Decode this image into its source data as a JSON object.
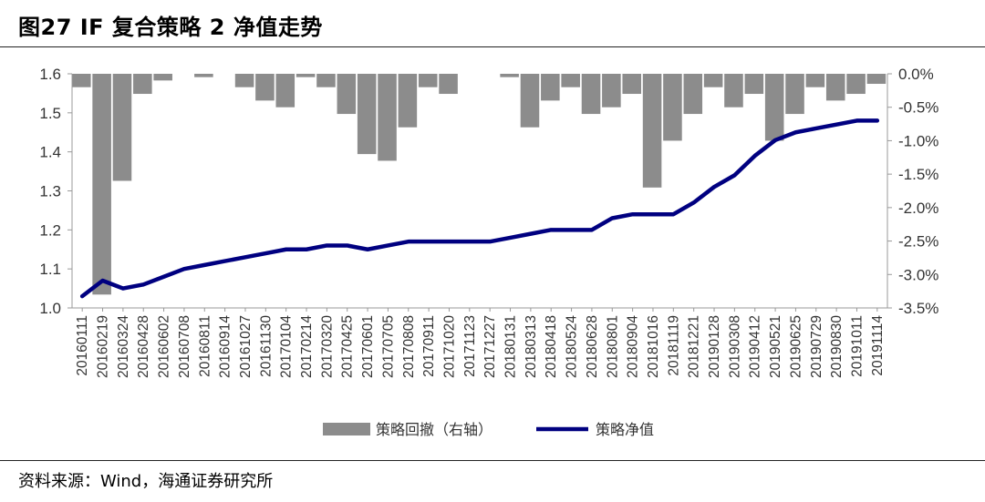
{
  "title": "图27 IF 复合策略 2 净值走势",
  "source": "资料来源：Wind，海通证券研究所",
  "colors": {
    "drawdown": "#8c8c8c",
    "nav": "#000080",
    "axis": "#999999"
  },
  "chart_data": {
    "type": "line",
    "title": "图27 IF 复合策略 2 净值走势",
    "categories": [
      "20160111",
      "20160219",
      "20160324",
      "20160428",
      "20160602",
      "20160708",
      "20160811",
      "20160914",
      "20161027",
      "20161130",
      "20170104",
      "20170214",
      "20170320",
      "20170425",
      "20170601",
      "20170705",
      "20170808",
      "20170911",
      "20171020",
      "20171123",
      "20171227",
      "20180131",
      "20180313",
      "20180418",
      "20180524",
      "20180628",
      "20180801",
      "20180904",
      "20181016",
      "20181119",
      "20181221",
      "20190128",
      "20190308",
      "20190412",
      "20190521",
      "20190625",
      "20190729",
      "20190830",
      "20191011",
      "20191114"
    ],
    "y_left": {
      "ylim": [
        1.0,
        1.6
      ],
      "ticks": [
        "1.0",
        "1.1",
        "1.2",
        "1.3",
        "1.4",
        "1.5",
        "1.6"
      ]
    },
    "y_right": {
      "ylim": [
        -3.5,
        0.0
      ],
      "ticks": [
        "0.0%",
        "-0.5%",
        "-1.0%",
        "-1.5%",
        "-2.0%",
        "-2.5%",
        "-3.0%",
        "-3.5%"
      ]
    },
    "legend_position": "bottom-center",
    "series": [
      {
        "name": "策略回撤（右轴）",
        "type": "area",
        "axis": "right",
        "values": [
          -0.2,
          -3.3,
          -1.6,
          -0.3,
          -0.1,
          0.0,
          -0.05,
          0.0,
          -0.2,
          -0.4,
          -0.5,
          -0.05,
          -0.2,
          -0.6,
          -1.2,
          -1.3,
          -0.8,
          -0.2,
          -0.3,
          0.0,
          0.0,
          -0.05,
          -0.8,
          -0.4,
          -0.2,
          -0.6,
          -0.5,
          -0.3,
          -1.7,
          -1.0,
          -0.6,
          -0.2,
          -0.5,
          -0.3,
          -1.0,
          -0.6,
          -0.2,
          -0.4,
          -0.3,
          -0.15
        ]
      },
      {
        "name": "策略净值",
        "type": "line",
        "axis": "left",
        "values": [
          1.03,
          1.07,
          1.05,
          1.06,
          1.08,
          1.1,
          1.11,
          1.12,
          1.13,
          1.14,
          1.15,
          1.15,
          1.16,
          1.16,
          1.15,
          1.16,
          1.17,
          1.17,
          1.17,
          1.17,
          1.17,
          1.18,
          1.19,
          1.2,
          1.2,
          1.2,
          1.23,
          1.24,
          1.24,
          1.24,
          1.27,
          1.31,
          1.34,
          1.39,
          1.43,
          1.45,
          1.46,
          1.47,
          1.48,
          1.48
        ]
      }
    ]
  }
}
